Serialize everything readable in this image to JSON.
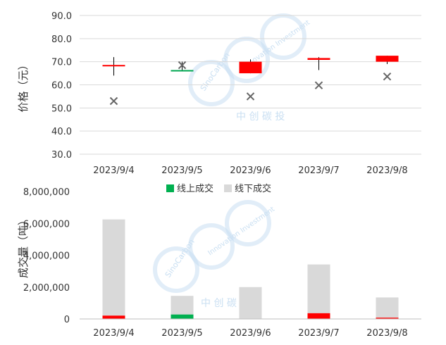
{
  "colors": {
    "up": "#ff0000",
    "down": "#00a651",
    "wick": "#000000",
    "marker": "#666666",
    "online": "#00b050",
    "offline": "#d9d9d9",
    "grid": "#d9d9d9",
    "watermark": "#c9dff2"
  },
  "chart_data": [
    {
      "type": "candlestick",
      "ylabel": "价格（元）",
      "ylim": [
        30,
        90
      ],
      "yticks": [
        "30.0",
        "40.0",
        "50.0",
        "60.0",
        "70.0",
        "80.0",
        "90.0"
      ],
      "grid": true,
      "categories": [
        "2023/9/4",
        "2023/9/5",
        "2023/9/6",
        "2023/9/7",
        "2023/9/8"
      ],
      "ohlc": [
        {
          "open": 68.0,
          "close": 68.6,
          "high": 72.0,
          "low": 64.0
        },
        {
          "open": 66.4,
          "close": 65.8,
          "high": 70.0,
          "low": 65.8
        },
        {
          "open": 65.0,
          "close": 70.0,
          "high": 71.0,
          "low": 65.0
        },
        {
          "open": 70.8,
          "close": 71.6,
          "high": 72.0,
          "low": 66.4
        },
        {
          "open": 70.0,
          "close": 72.6,
          "high": 72.6,
          "low": 69.0
        }
      ],
      "markers": [
        53.0,
        68.5,
        55.0,
        59.8,
        63.6
      ]
    },
    {
      "type": "stacked-bar",
      "ylabel": "成交量（吨）",
      "ylim": [
        0,
        8000000
      ],
      "yticks": [
        "0",
        "2,000,000",
        "4,000,000",
        "6,000,000",
        "8,000,000"
      ],
      "grid": false,
      "legend_position": "top-center",
      "categories": [
        "2023/9/4",
        "2023/9/5",
        "2023/9/6",
        "2023/9/7",
        "2023/9/8"
      ],
      "series": [
        {
          "name": "线上成交",
          "values": [
            210000,
            280000,
            0,
            360000,
            80000
          ]
        },
        {
          "name": "线下成交",
          "values": [
            6040000,
            1170000,
            2000000,
            3060000,
            1270000
          ]
        }
      ]
    }
  ],
  "watermark": {
    "brand": "SinoCarbon",
    "tagline": "Innovation Investment",
    "cn": "中 创 碳 投"
  }
}
